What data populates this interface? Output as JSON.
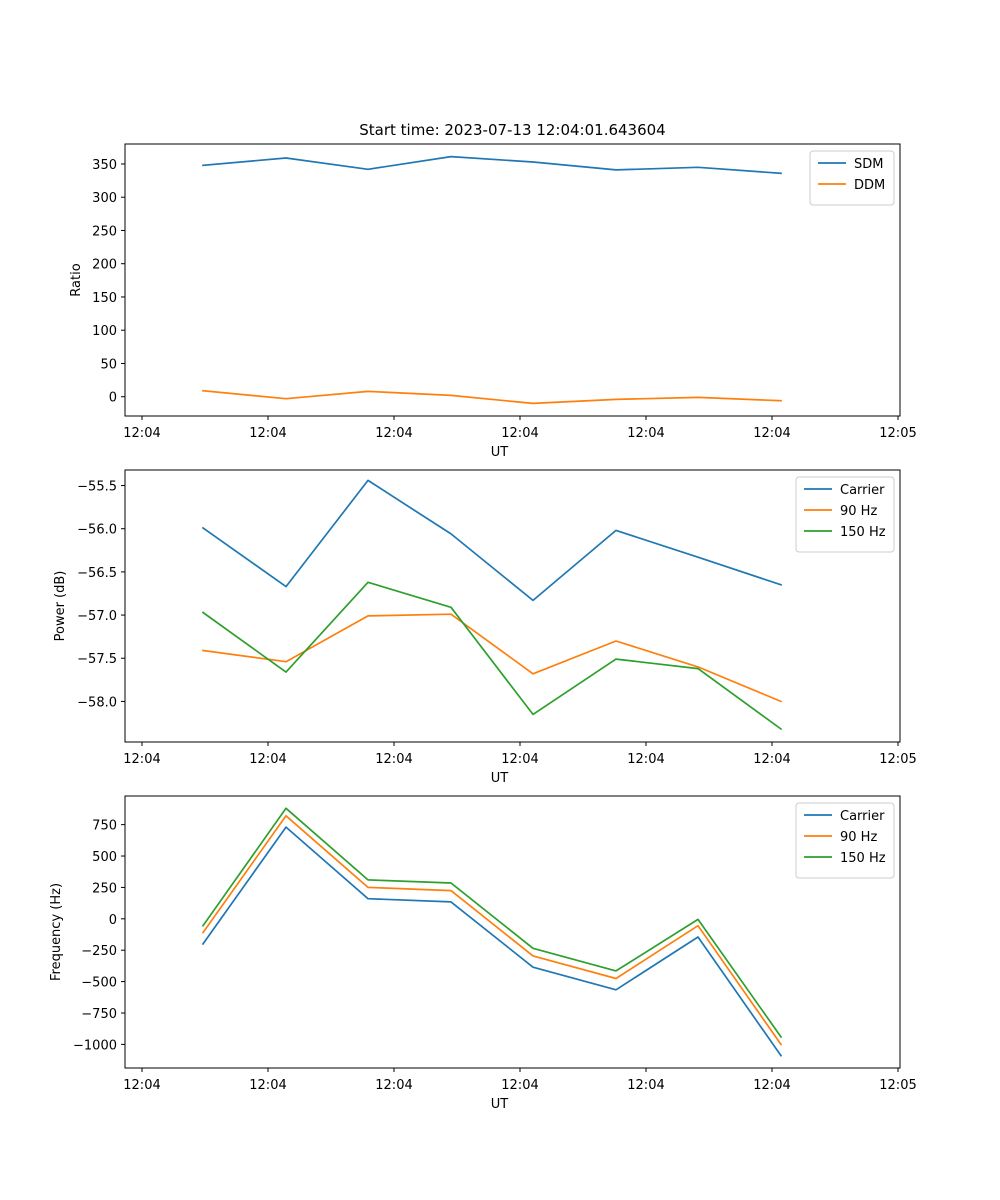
{
  "figure": {
    "title": "Start time: 2023-07-13 12:04:01.643604"
  },
  "chart_data": [
    {
      "type": "line",
      "title": "Start time: 2023-07-13 12:04:01.643604",
      "xlabel": "UT",
      "ylabel": "Ratio",
      "x_tick_labels": [
        "12:04",
        "12:04",
        "12:04",
        "12:04",
        "12:04",
        "12:04",
        "12:05"
      ],
      "y_ticks": [
        0,
        50,
        100,
        150,
        200,
        250,
        300,
        350
      ],
      "ylim": [
        -29,
        380
      ],
      "grid": false,
      "legend_position": "top-right",
      "series": [
        {
          "name": "SDM",
          "color": "#1f77b4",
          "values": [
            348,
            359,
            342,
            361,
            353,
            341,
            345,
            336
          ]
        },
        {
          "name": "DDM",
          "color": "#ff7f0e",
          "values": [
            9,
            -3,
            8,
            2,
            -10,
            -4,
            -1,
            -6
          ]
        }
      ]
    },
    {
      "type": "line",
      "title": "",
      "xlabel": "UT",
      "ylabel": "Power (dB)",
      "x_tick_labels": [
        "12:04",
        "12:04",
        "12:04",
        "12:04",
        "12:04",
        "12:04",
        "12:05"
      ],
      "y_ticks": [
        -58.0,
        -57.5,
        -57.0,
        -56.5,
        -56.0,
        -55.5
      ],
      "y_tick_labels": [
        "−58.0",
        "−57.5",
        "−57.0",
        "−56.5",
        "−56.0",
        "−55.5"
      ],
      "ylim": [
        -58.47,
        -55.32
      ],
      "grid": false,
      "legend_position": "top-right",
      "series": [
        {
          "name": "Carrier",
          "color": "#1f77b4",
          "values": [
            -55.99,
            -56.67,
            -55.44,
            -56.06,
            -56.83,
            -56.02,
            -56.33,
            -56.65
          ]
        },
        {
          "name": "90 Hz",
          "color": "#ff7f0e",
          "values": [
            -57.41,
            -57.54,
            -57.01,
            -56.99,
            -57.68,
            -57.3,
            -57.6,
            -58.0
          ]
        },
        {
          "name": "150 Hz",
          "color": "#2ca02c",
          "values": [
            -56.97,
            -57.66,
            -56.62,
            -56.91,
            -58.15,
            -57.51,
            -57.62,
            -58.32
          ]
        }
      ]
    },
    {
      "type": "line",
      "title": "",
      "xlabel": "UT",
      "ylabel": "Frequency (Hz)",
      "x_tick_labels": [
        "12:04",
        "12:04",
        "12:04",
        "12:04",
        "12:04",
        "12:04",
        "12:05"
      ],
      "y_ticks": [
        -1000,
        -750,
        -500,
        -250,
        0,
        250,
        500,
        750
      ],
      "y_tick_labels": [
        "−1000",
        "−750",
        "−500",
        "−250",
        "0",
        "250",
        "500",
        "750"
      ],
      "ylim": [
        -1188,
        978
      ],
      "grid": false,
      "legend_position": "top-right",
      "series": [
        {
          "name": "Carrier",
          "color": "#1f77b4",
          "values": [
            -200,
            730,
            160,
            135,
            -385,
            -565,
            -145,
            -1090
          ]
        },
        {
          "name": "90 Hz",
          "color": "#ff7f0e",
          "values": [
            -110,
            820,
            250,
            225,
            -295,
            -475,
            -55,
            -1000
          ]
        },
        {
          "name": "150 Hz",
          "color": "#2ca02c",
          "values": [
            -55,
            880,
            310,
            285,
            -235,
            -415,
            -5,
            -940
          ]
        }
      ]
    }
  ]
}
